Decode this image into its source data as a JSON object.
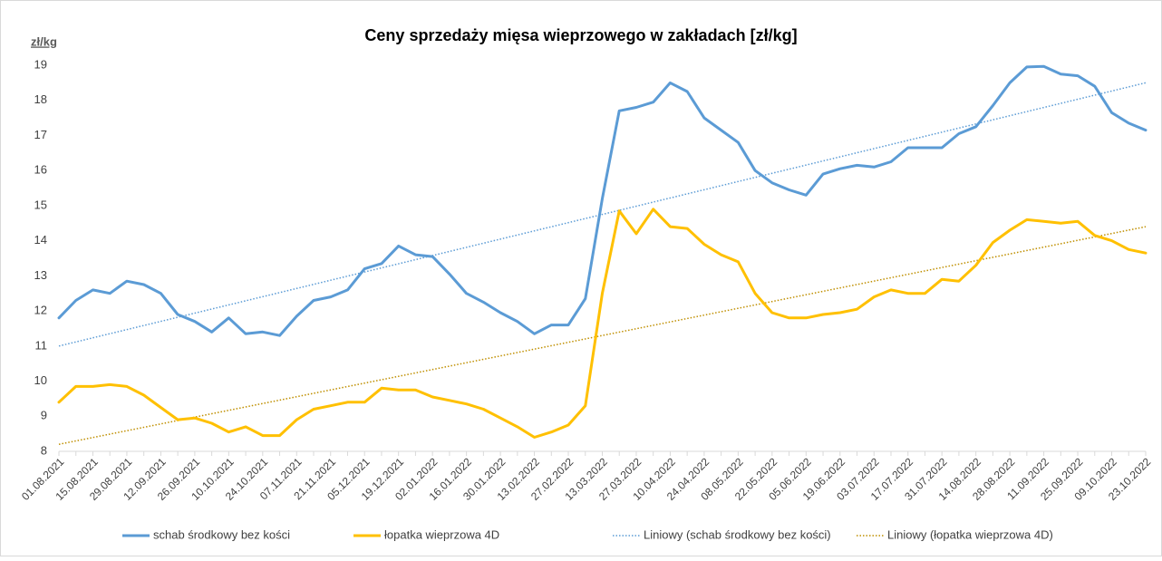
{
  "chart_data": {
    "type": "line",
    "title": "Ceny sprzedaży mięsa wieprzowego w zakładach [zł/kg]",
    "y_label": "zł/kg",
    "categories": [
      "01.08.2021",
      null,
      "15.08.2021",
      null,
      "29.08.2021",
      null,
      "12.09.2021",
      null,
      "26.09.2021",
      null,
      "10.10.2021",
      null,
      "24.10.2021",
      null,
      "07.11.2021",
      null,
      "21.11.2021",
      null,
      "05.12.2021",
      null,
      "19.12.2021",
      null,
      "02.01.2022",
      null,
      "16.01.2022",
      null,
      "30.01.2022",
      null,
      "13.02.2022",
      null,
      "27.02.2022",
      null,
      "13.03.2022",
      null,
      "27.03.2022",
      null,
      "10.04.2022",
      null,
      "24.04.2022",
      null,
      "08.05.2022",
      null,
      "22.05.2022",
      null,
      "05.06.2022",
      null,
      "19.06.2022",
      null,
      "03.07.2022",
      null,
      "17.07.2022",
      null,
      "31.07.2022",
      null,
      "14.08.2022",
      null,
      "28.08.2022",
      null,
      "11.09.2022",
      null,
      "25.09.2022",
      null,
      "09.10.2022",
      null,
      "23.10.2022"
    ],
    "series": [
      {
        "name": "schab środkowy bez kości",
        "color": "#5b9bd5",
        "values": [
          11.8,
          12.3,
          12.6,
          12.5,
          12.85,
          12.75,
          12.5,
          11.9,
          11.7,
          11.4,
          11.8,
          11.35,
          11.4,
          11.3,
          11.85,
          12.3,
          12.4,
          12.6,
          13.2,
          13.35,
          13.85,
          13.6,
          13.55,
          13.05,
          12.5,
          12.25,
          11.95,
          11.7,
          11.35,
          11.6,
          11.6,
          12.35,
          15.2,
          17.7,
          17.8,
          17.95,
          18.5,
          18.25,
          17.5,
          17.15,
          16.8,
          16.0,
          15.65,
          15.45,
          15.3,
          15.9,
          16.05,
          16.15,
          16.1,
          16.25,
          16.65,
          16.65,
          16.65,
          17.05,
          17.25,
          17.85,
          18.5,
          18.95,
          18.97,
          18.75,
          18.7,
          18.4,
          17.65,
          17.35,
          17.15
        ]
      },
      {
        "name": "łopatka wieprzowa 4D",
        "color": "#ffc000",
        "values": [
          9.4,
          9.85,
          9.85,
          9.9,
          9.85,
          9.6,
          9.25,
          8.9,
          8.95,
          8.8,
          8.55,
          8.7,
          8.45,
          8.45,
          8.9,
          9.2,
          9.3,
          9.4,
          9.4,
          9.8,
          9.75,
          9.75,
          9.55,
          9.45,
          9.35,
          9.2,
          8.95,
          8.7,
          8.4,
          8.55,
          8.75,
          9.3,
          12.5,
          14.85,
          14.2,
          14.9,
          14.4,
          14.35,
          13.9,
          13.6,
          13.4,
          12.5,
          11.95,
          11.8,
          11.8,
          11.9,
          11.95,
          12.05,
          12.4,
          12.6,
          12.5,
          12.5,
          12.9,
          12.85,
          13.3,
          13.95,
          14.3,
          14.6,
          14.55,
          14.5,
          14.55,
          14.15,
          14.0,
          13.75,
          13.65
        ]
      }
    ],
    "trendlines": [
      {
        "name": "Liniowy (schab środkowy bez kości)",
        "color": "#5b9bd5",
        "start": 11.0,
        "end": 18.5
      },
      {
        "name": "Liniowy (łopatka wieprzowa 4D)",
        "color": "#bf8f00",
        "start": 8.2,
        "end": 14.4
      }
    ],
    "ylim": [
      8,
      19
    ],
    "yticks": [
      8,
      9,
      10,
      11,
      12,
      13,
      14,
      15,
      16,
      17,
      18,
      19
    ],
    "legend": "bottom"
  }
}
